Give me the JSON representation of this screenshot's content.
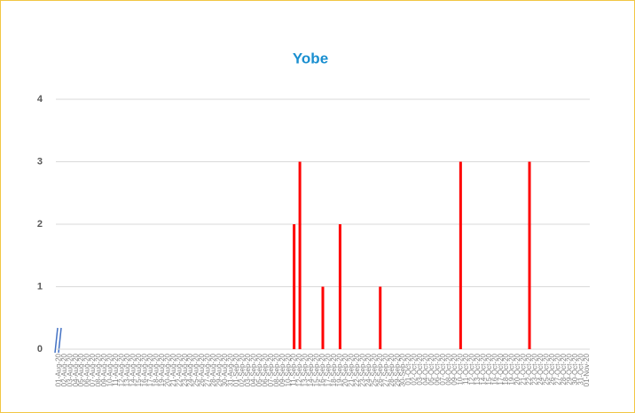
{
  "chart_data": {
    "type": "bar",
    "title": "Yobe",
    "categories": [
      "01-Aug-20",
      "02-Aug-20",
      "03-Aug-20",
      "04-Aug-20",
      "05-Aug-20",
      "06-Aug-20",
      "07-Aug-20",
      "08-Aug-20",
      "09-Aug-20",
      "10-Aug-20",
      "11-Aug-20",
      "12-Aug-20",
      "13-Aug-20",
      "14-Aug-20",
      "15-Aug-20",
      "16-Aug-20",
      "17-Aug-20",
      "18-Aug-20",
      "19-Aug-20",
      "20-Aug-20",
      "21-Aug-20",
      "22-Aug-20",
      "23-Aug-20",
      "24-Aug-20",
      "25-Aug-20",
      "26-Aug-20",
      "27-Aug-20",
      "28-Aug-20",
      "29-Aug-20",
      "30-Aug-20",
      "31-Aug-20",
      "01-Sep-20",
      "02-Sep-20",
      "03-Sep-20",
      "04-Sep-20",
      "05-Sep-20",
      "06-Sep-20",
      "07-Sep-20",
      "08-Sep-20",
      "09-Sep-20",
      "10-Sep-20",
      "11-Sep-20",
      "12-Sep-20",
      "13-Sep-20",
      "14-Sep-20",
      "15-Sep-20",
      "16-Sep-20",
      "17-Sep-20",
      "18-Sep-20",
      "19-Sep-20",
      "20-Sep-20",
      "21-Sep-20",
      "22-Sep-20",
      "23-Sep-20",
      "24-Sep-20",
      "25-Sep-20",
      "26-Sep-20",
      "27-Sep-20",
      "28-Sep-20",
      "29-Sep-20",
      "30-Sep-20",
      "01-Oct-20",
      "02-Oct-20",
      "03-Oct-20",
      "04-Oct-20",
      "05-Oct-20",
      "06-Oct-20",
      "07-Oct-20",
      "08-Oct-20",
      "09-Oct-20",
      "10-Oct-20",
      "11-Oct-20",
      "12-Oct-20",
      "13-Oct-20",
      "14-Oct-20",
      "15-Oct-20",
      "16-Oct-20",
      "17-Oct-20",
      "18-Oct-20",
      "19-Oct-20",
      "20-Oct-20",
      "21-Oct-20",
      "22-Oct-20",
      "23-Oct-20",
      "24-Oct-20",
      "25-Oct-20",
      "26-Oct-20",
      "27-Oct-20",
      "28-Oct-20",
      "29-Oct-20",
      "30-Oct-20",
      "31-Oct-20",
      "01-Nov-20"
    ],
    "values": [
      0,
      0,
      0,
      0,
      0,
      0,
      0,
      0,
      0,
      0,
      0,
      0,
      0,
      0,
      0,
      0,
      0,
      0,
      0,
      0,
      0,
      0,
      0,
      0,
      0,
      0,
      0,
      0,
      0,
      0,
      0,
      0,
      0,
      0,
      0,
      0,
      0,
      0,
      0,
      0,
      0,
      2,
      3,
      0,
      0,
      0,
      1,
      0,
      0,
      2,
      0,
      0,
      0,
      0,
      0,
      0,
      1,
      0,
      0,
      0,
      0,
      0,
      0,
      0,
      0,
      0,
      0,
      0,
      0,
      0,
      3,
      0,
      0,
      0,
      0,
      0,
      0,
      0,
      0,
      0,
      0,
      0,
      3,
      0,
      0,
      0,
      0,
      0,
      0,
      0,
      0,
      0,
      0
    ],
    "color": "#ff0000",
    "ylim": [
      0,
      4
    ],
    "yticks": [
      0,
      1,
      2,
      3,
      4
    ],
    "grid": true
  }
}
